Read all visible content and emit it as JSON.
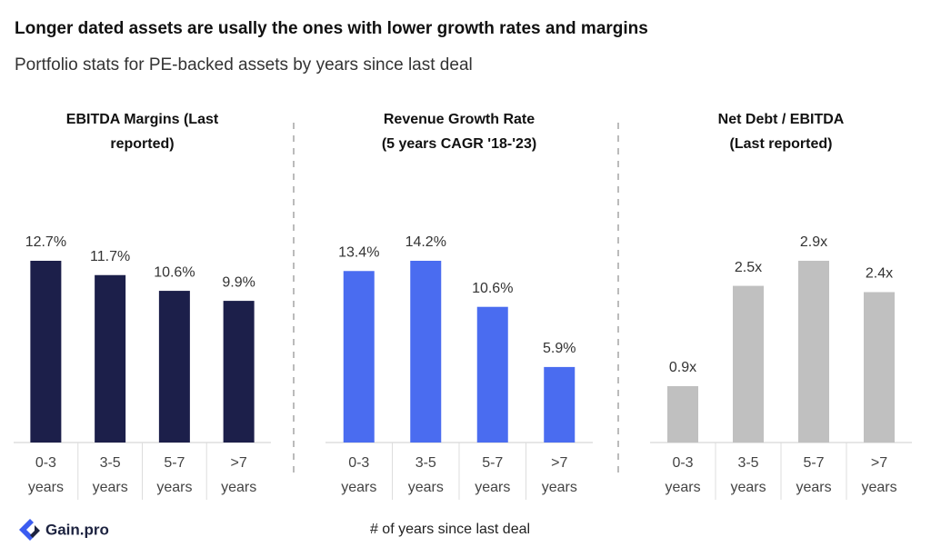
{
  "title": "Longer dated assets are usally the ones with lower growth rates and margins",
  "subtitle": "Portfolio stats for PE-backed assets by years since last deal",
  "xlabel": "# of years since last deal",
  "logo": "Gain.pro",
  "chart_data": [
    {
      "type": "bar",
      "title": "EBITDA Margins (Last\nreported)",
      "categories": [
        "0-3 years",
        "3-5 years",
        "5-7 years",
        ">7 years"
      ],
      "values": [
        12.7,
        11.7,
        10.6,
        9.9
      ],
      "value_labels": [
        "12.7%",
        "11.7%",
        "10.6%",
        "9.9%"
      ],
      "color": "#1c1f4a"
    },
    {
      "type": "bar",
      "title": "Revenue Growth Rate\n(5 years CAGR '18-'23)",
      "categories": [
        "0-3 years",
        "3-5 years",
        "5-7 years",
        ">7 years"
      ],
      "values": [
        13.4,
        14.2,
        10.6,
        5.9
      ],
      "value_labels": [
        "13.4%",
        "14.2%",
        "10.6%",
        "5.9%"
      ],
      "color": "#4a6cf0"
    },
    {
      "type": "bar",
      "title": "Net Debt / EBITDA\n(Last reported)",
      "categories": [
        "0-3 years",
        "3-5 years",
        "5-7 years",
        ">7 years"
      ],
      "values": [
        0.9,
        2.5,
        2.9,
        2.4
      ],
      "value_labels": [
        "0.9x",
        "2.5x",
        "2.9x",
        "2.4x"
      ],
      "color": "#c0c0c0"
    }
  ]
}
